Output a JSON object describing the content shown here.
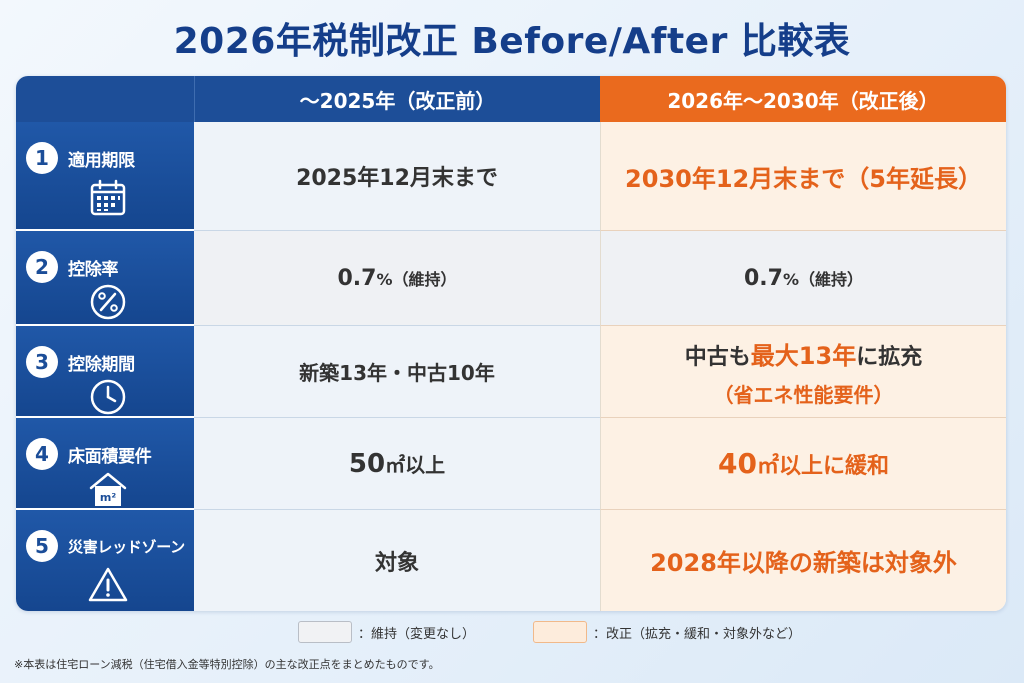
{
  "title": "2026年税制改正 Before/After 比較表",
  "header": {
    "corner": "",
    "before": "〜2025年（改正前）",
    "after": "2026年〜2030年（改正後）"
  },
  "rows": [
    {
      "number": "1",
      "label": "適用期限",
      "icon": "calendar-icon",
      "before": "2025年12月末まで",
      "after": "2030年12月末まで（5年延長）"
    },
    {
      "number": "2",
      "label": "控除率",
      "icon": "percent-icon",
      "before_main": "0.7",
      "before_suffix": "%（維持）",
      "after_main": "0.7",
      "after_suffix": "%（維持）"
    },
    {
      "number": "3",
      "label": "控除期間",
      "icon": "clock-icon",
      "before": "新築13年・中古10年",
      "after_prefix": "中古も",
      "after_highlight": "最大13年",
      "after_suffix": "に拡充",
      "after_sub": "（省エネ性能要件）"
    },
    {
      "number": "4",
      "label": "床面積要件",
      "icon": "house-icon",
      "icon_text": "m²",
      "before_main": "50",
      "before_suffix": "㎡以上",
      "after_main": "40",
      "after_suffix": "㎡以上に緩和"
    },
    {
      "number": "5",
      "label": "災害レッドゾーン",
      "icon": "warning-icon",
      "before": "対象",
      "after": "2028年以降の新築は対象外"
    }
  ],
  "legend": {
    "keep": "：維持（変更なし）",
    "change": "：改正（拡充・緩和・対象外など）"
  },
  "note": "※本表は住宅ローン減税（住宅借入金等特別控除）の主な改正点をまとめたものです。",
  "colors": {
    "navy": "#1d4e98",
    "orange": "#ea6a1e",
    "highlight_text": "#e4621b"
  }
}
